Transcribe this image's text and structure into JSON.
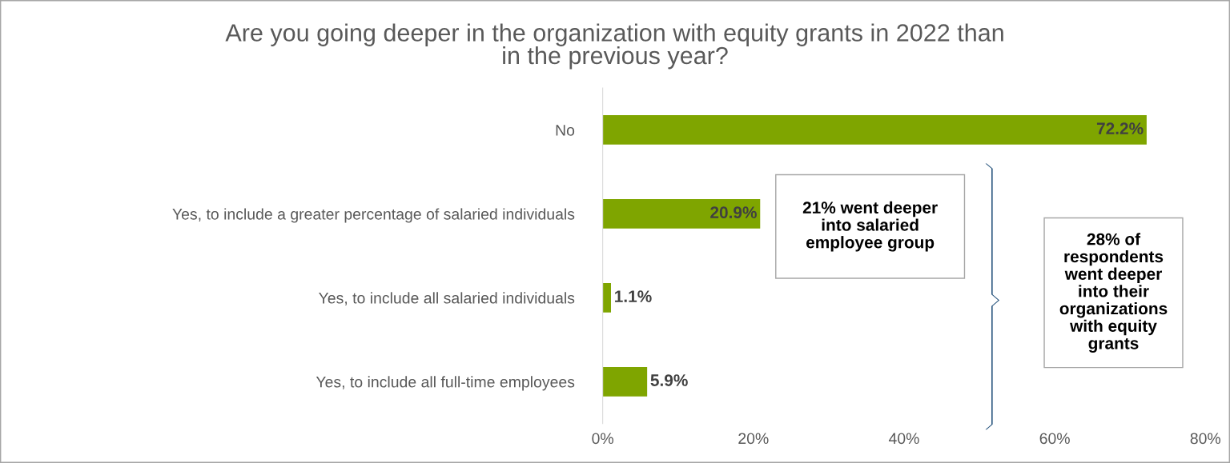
{
  "chart_data": {
    "type": "bar",
    "orientation": "horizontal",
    "title": "Are you going deeper in the organization with equity grants in 2022 than\nin the previous year?",
    "categories": [
      "No",
      "Yes, to include a greater percentage of salaried individuals",
      "Yes, to include all salaried individuals",
      "Yes, to include all full-time employees"
    ],
    "values": [
      72.2,
      20.9,
      1.1,
      5.9
    ],
    "value_labels": [
      "72.2%",
      "20.9%",
      "1.1%",
      "5.9%"
    ],
    "color": "#7fa500",
    "xlim": [
      0,
      80
    ],
    "xticks": [
      {
        "value": 0,
        "label": "0%"
      },
      {
        "value": 20,
        "label": "20%"
      },
      {
        "value": 40,
        "label": "40%"
      },
      {
        "value": 60,
        "label": "60%"
      },
      {
        "value": 80,
        "label": "80%"
      }
    ],
    "grid": false,
    "annotations": [
      "21% went deeper\ninto salaried\nemployee group",
      "28% of\nrespondents\nwent deeper\ninto their\norganizations\nwith equity\ngrants"
    ]
  }
}
